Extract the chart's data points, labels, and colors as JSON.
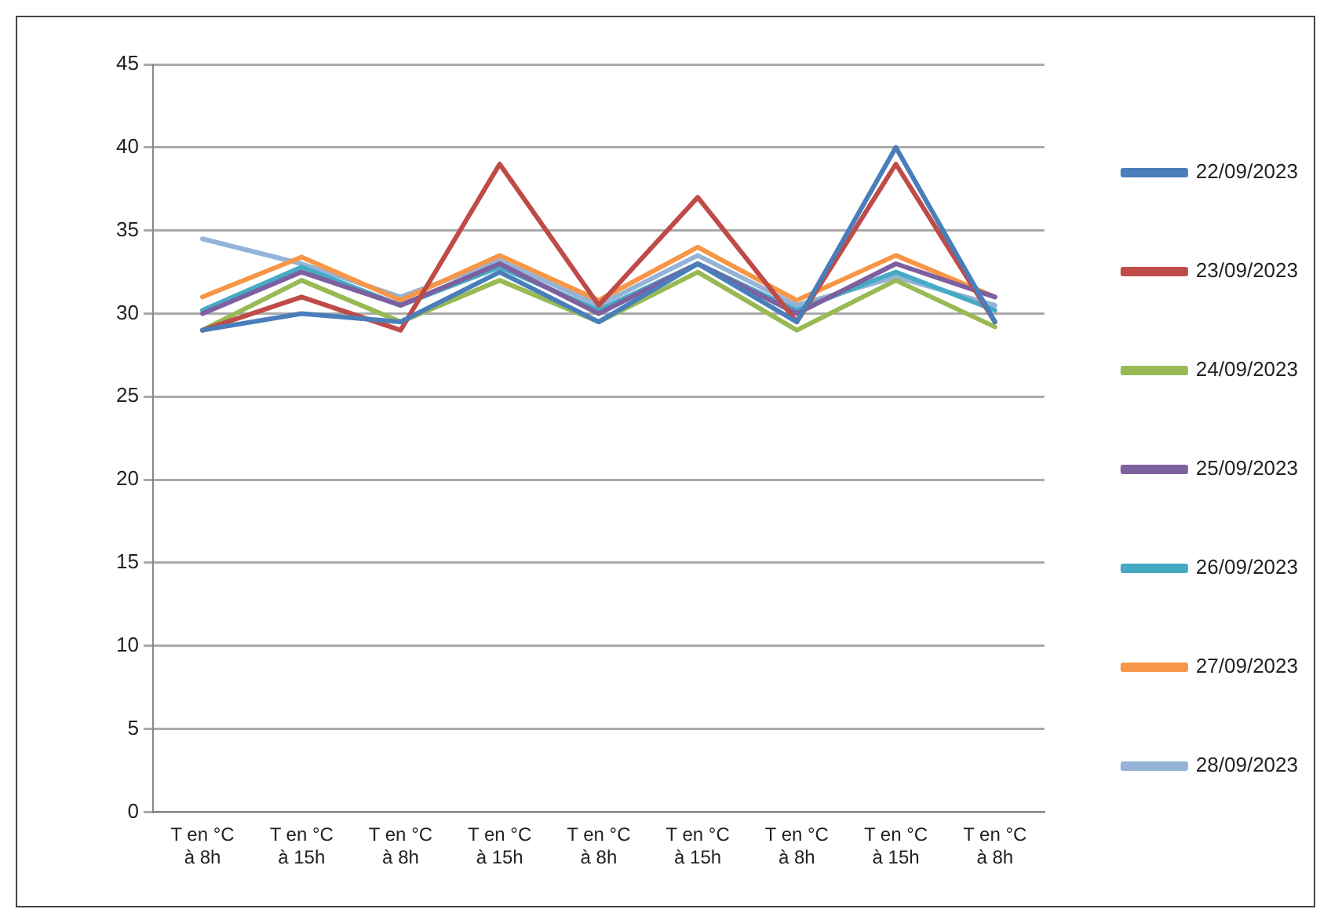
{
  "chart_data": {
    "type": "line",
    "categories": [
      "T en °C\nà 8h",
      "T en °C\nà 15h",
      "T en °C\nà 8h",
      "T en °C\nà 15h",
      "T en °C\nà 8h",
      "T en °C\nà 15h",
      "T en °C\nà 8h",
      "T en °C\nà 15h",
      "T en °C\nà 8h"
    ],
    "series": [
      {
        "name": "22/09/2023",
        "color": "#4a7ebb",
        "values": [
          29,
          30,
          29.5,
          32.5,
          29.5,
          33,
          29.5,
          40,
          29.5
        ]
      },
      {
        "name": "23/09/2023",
        "color": "#be4b48",
        "values": [
          29,
          31,
          29,
          39,
          30.5,
          37,
          29.5,
          39,
          29.5
        ]
      },
      {
        "name": "24/09/2023",
        "color": "#98b954",
        "values": [
          29,
          32,
          29.5,
          32,
          29.5,
          32.5,
          29,
          32,
          29.2
        ]
      },
      {
        "name": "25/09/2023",
        "color": "#7d60a0",
        "values": [
          30,
          32.5,
          30.5,
          33,
          30,
          33,
          30,
          33,
          31
        ]
      },
      {
        "name": "26/09/2023",
        "color": "#46aac5",
        "values": [
          30.2,
          32.8,
          30.5,
          32.8,
          30.2,
          33,
          30.2,
          32.5,
          30.2
        ]
      },
      {
        "name": "27/09/2023",
        "color": "#f79646",
        "values": [
          31,
          33.4,
          30.8,
          33.5,
          30.8,
          34,
          30.8,
          33.5,
          31
        ]
      },
      {
        "name": "28/09/2023",
        "color": "#95b3d7",
        "values": [
          34.5,
          33,
          31,
          33.2,
          30.5,
          33.5,
          30.5,
          32.2,
          30.5
        ]
      }
    ],
    "ylim": [
      0,
      45
    ],
    "yticks": [
      0,
      5,
      10,
      15,
      20,
      25,
      30,
      35,
      40,
      45
    ],
    "grid": "y",
    "legend": "right",
    "marker": "none",
    "line_style": "solid"
  }
}
